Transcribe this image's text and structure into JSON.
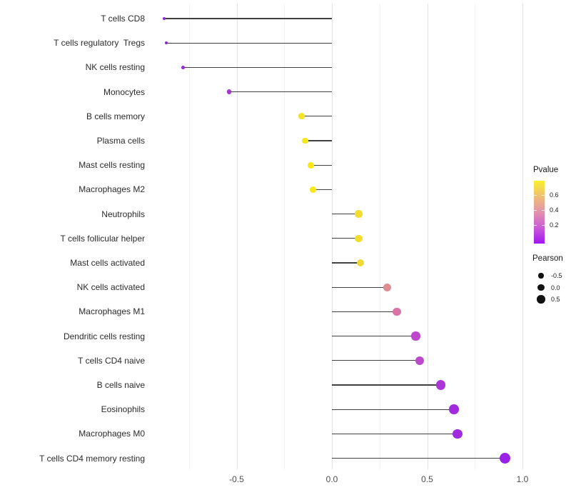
{
  "chart_data": {
    "type": "lollipop",
    "orientation": "horizontal",
    "title": "",
    "xlabel": "",
    "ylabel": "",
    "x_axis": {
      "ticks": [
        -0.5,
        0.0,
        0.5,
        1.0
      ],
      "tick_labels": [
        "-0.5",
        "0.0",
        "0.5",
        "1.0"
      ],
      "minor_ticks": [
        -0.75,
        -0.25,
        0.25,
        0.75
      ],
      "range": [
        -0.95,
        1.05
      ],
      "grid": "vertical-only"
    },
    "points": [
      {
        "label": "T cells CD8",
        "pearson": -0.88,
        "color": "#8e24e0"
      },
      {
        "label": "T cells regulatory  Tregs",
        "pearson": -0.87,
        "color": "#8e24e0"
      },
      {
        "label": "NK cells resting",
        "pearson": -0.78,
        "color": "#9527e0"
      },
      {
        "label": "Monocytes",
        "pearson": -0.54,
        "color": "#a832d8"
      },
      {
        "label": "B cells memory",
        "pearson": -0.16,
        "color": "#f5e32a"
      },
      {
        "label": "Plasma cells",
        "pearson": -0.14,
        "color": "#f7e61e"
      },
      {
        "label": "Mast cells resting",
        "pearson": -0.11,
        "color": "#f9e814"
      },
      {
        "label": "Macrophages M2",
        "pearson": -0.1,
        "color": "#f9e814"
      },
      {
        "label": "Neutrophils",
        "pearson": 0.14,
        "color": "#f2dc2e"
      },
      {
        "label": "T cells follicular helper",
        "pearson": 0.14,
        "color": "#f2dc2e"
      },
      {
        "label": "Mast cells activated",
        "pearson": 0.15,
        "color": "#f0d936"
      },
      {
        "label": "NK cells activated",
        "pearson": 0.29,
        "color": "#de8c92"
      },
      {
        "label": "Macrophages M1",
        "pearson": 0.34,
        "color": "#d974a6"
      },
      {
        "label": "Dendritic cells resting",
        "pearson": 0.44,
        "color": "#bd48cc"
      },
      {
        "label": "T cells CD4 naive",
        "pearson": 0.46,
        "color": "#bd48cc"
      },
      {
        "label": "B cells naive",
        "pearson": 0.57,
        "color": "#ac35d8"
      },
      {
        "label": "Eosinophils",
        "pearson": 0.64,
        "color": "#a02bde"
      },
      {
        "label": "Macrophages M0",
        "pearson": 0.66,
        "color": "#a02bde"
      },
      {
        "label": "T cells CD4 memory resting",
        "pearson": 0.91,
        "color": "#9a22e6"
      }
    ],
    "legends": {
      "pvalue": {
        "title": "Pvalue",
        "tick_labels": [
          "0.6",
          "0.4",
          "0.2"
        ],
        "tick_values": [
          0.6,
          0.4,
          0.2
        ],
        "gradient_top_to_bottom": [
          "#f9f12d",
          "#efbe74",
          "#e292ab",
          "#c95bd6",
          "#a316f2"
        ]
      },
      "pearson": {
        "title": "Pearson",
        "entries": [
          {
            "label": "-0.5",
            "value": -0.5
          },
          {
            "label": "0.0",
            "value": 0.0
          },
          {
            "label": "0.5",
            "value": 0.5
          }
        ],
        "dot_color": "#111111"
      }
    },
    "stem_color": "#404040"
  }
}
